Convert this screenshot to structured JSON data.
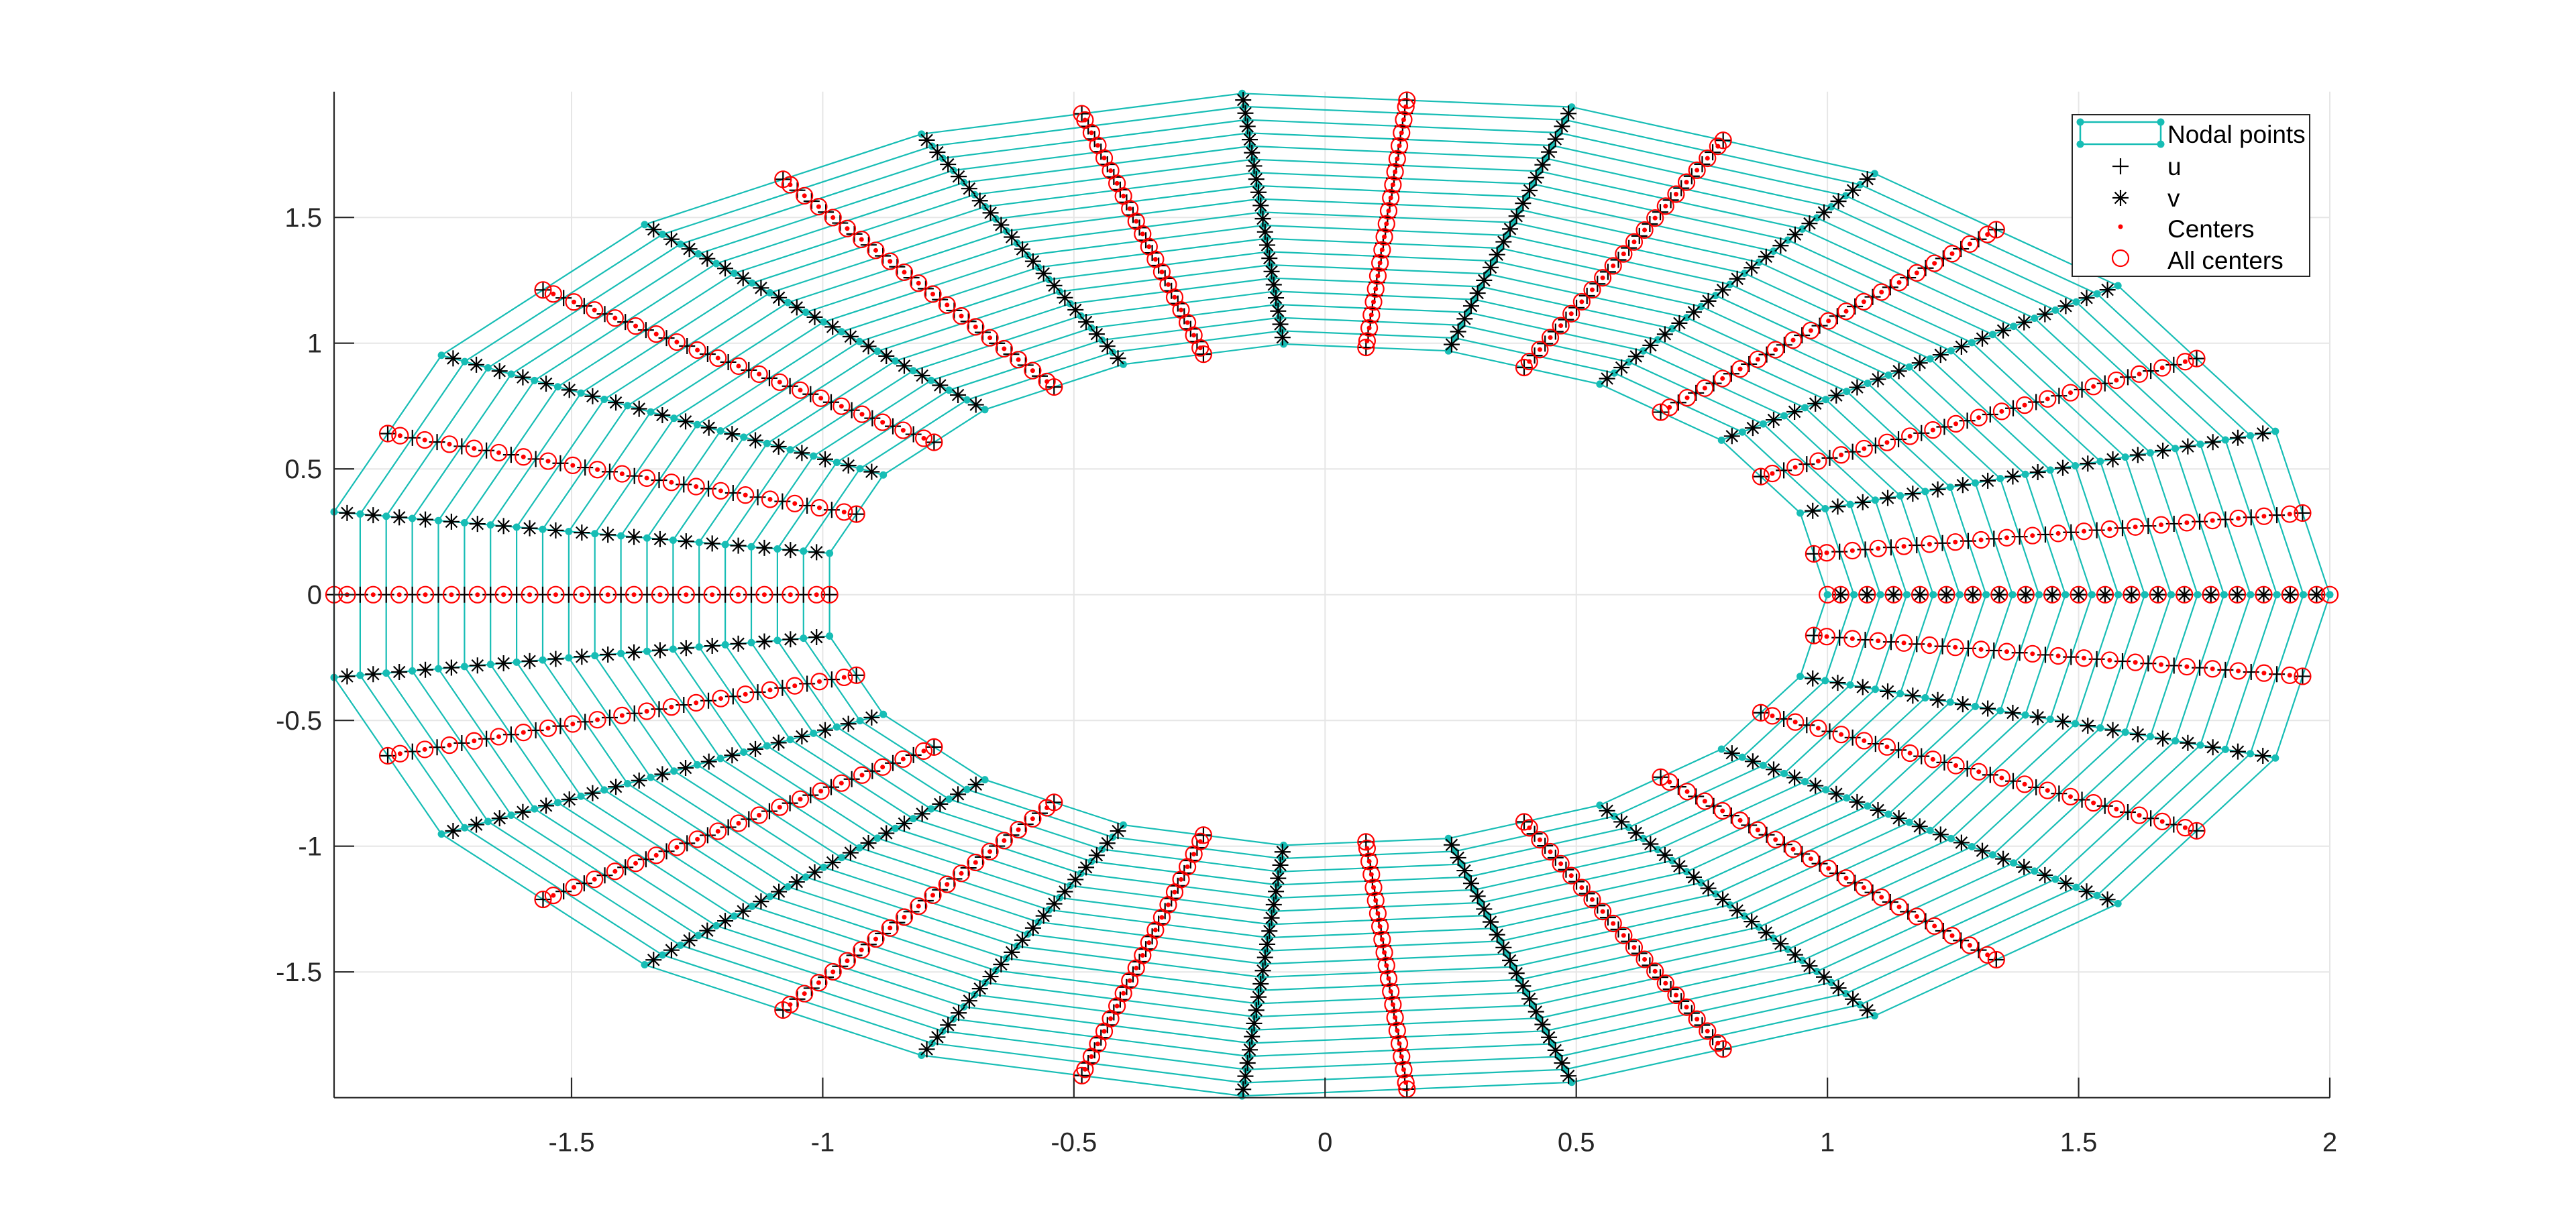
{
  "chart_data": {
    "type": "scatter",
    "title": "",
    "xlabel": "",
    "ylabel": "",
    "xlim": [
      -1.9727,
      2
    ],
    "ylim": [
      -2,
      2
    ],
    "grid": true,
    "legend_position": "top-right",
    "x_ticks": [
      "-1.5",
      "-1",
      "-0.5",
      "0",
      "0.5",
      "1",
      "1.5",
      "2"
    ],
    "x_tick_values": [
      -1.5,
      -1,
      -0.5,
      0,
      0.5,
      1,
      1.5,
      2
    ],
    "y_ticks": [
      "-1.5",
      "-1",
      "-0.5",
      "0",
      "0.5",
      "1",
      "1.5"
    ],
    "y_tick_values": [
      -1.5,
      -1,
      -0.5,
      0,
      0.5,
      1,
      1.5
    ],
    "mesh": {
      "inner_radius": 1,
      "outer_radius": 2,
      "radial_cells": 19,
      "angular_cells": 19
    },
    "series": [
      {
        "name": "Nodal points",
        "marker": "dot",
        "line": "solid",
        "color": "#17bdb5"
      },
      {
        "name": "u",
        "marker": "plus",
        "color": "#000000"
      },
      {
        "name": "v",
        "marker": "asterisk",
        "color": "#000000"
      },
      {
        "name": "Centers",
        "marker": "dot",
        "color": "#ff0000"
      },
      {
        "name": "All centers",
        "marker": "circle",
        "color": "#ff0000"
      }
    ]
  }
}
